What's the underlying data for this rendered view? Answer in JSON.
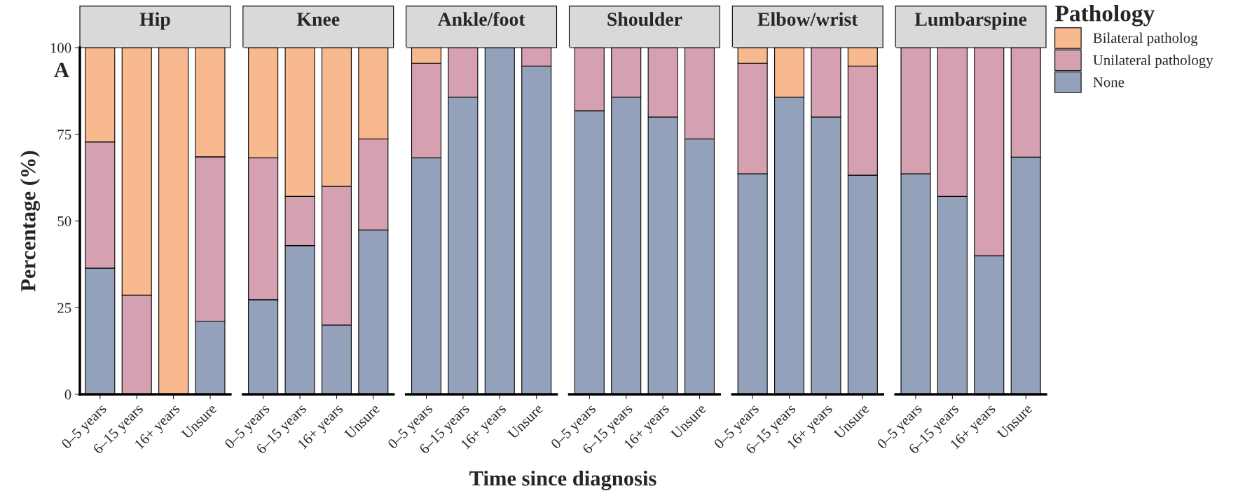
{
  "chart_data": [
    {
      "type": "bar",
      "title": "Hip",
      "ylabel": "Percentage (%)",
      "annotations": [
        "A"
      ],
      "categories": [
        "0–5 years",
        "6–15 years",
        "16+ years",
        "Unsure"
      ],
      "stacked": true,
      "ylim": [
        0,
        100
      ],
      "yticks": [
        0,
        25,
        50,
        75,
        100
      ],
      "grid": false,
      "legend": false,
      "series": [
        {
          "color": "#93a1bb",
          "values": [
            36.4,
            0,
            0,
            21.1
          ]
        },
        {
          "color": "#d5a1b0",
          "values": [
            36.4,
            28.6,
            0,
            47.4
          ]
        },
        {
          "color": "#f8b98f",
          "values": [
            27.2,
            71.4,
            100,
            31.5
          ]
        }
      ]
    },
    {
      "type": "bar",
      "title": "Knee",
      "categories": [
        "0–5 years",
        "6–15 years",
        "16+ years",
        "Unsure"
      ],
      "stacked": true,
      "ylim": [
        0,
        100
      ],
      "yticks": [
        0,
        25,
        50,
        75,
        100
      ],
      "tick_labels": "x",
      "grid": false,
      "legend": false,
      "series": [
        {
          "color": "#93a1bb",
          "values": [
            27.3,
            42.9,
            20,
            47.4
          ]
        },
        {
          "color": "#d5a1b0",
          "values": [
            40.9,
            14.2,
            40,
            26.3
          ]
        },
        {
          "color": "#f8b98f",
          "values": [
            31.8,
            42.9,
            40,
            26.3
          ]
        }
      ]
    },
    {
      "type": "bar",
      "title": "Ankle/foot",
      "xlabel": "Time since diagnosis",
      "categories": [
        "0–5 years",
        "6–15 years",
        "16+ years",
        "Unsure"
      ],
      "stacked": true,
      "ylim": [
        0,
        100
      ],
      "yticks": [
        0,
        25,
        50,
        75,
        100
      ],
      "tick_labels": "x",
      "grid": false,
      "legend": false,
      "series": [
        {
          "color": "#93a1bb",
          "values": [
            68.2,
            85.7,
            100,
            94.7
          ]
        },
        {
          "color": "#d5a1b0",
          "values": [
            27.3,
            14.3,
            0,
            5.3
          ]
        },
        {
          "color": "#f8b98f",
          "values": [
            4.5,
            0,
            0,
            0
          ]
        }
      ]
    },
    {
      "type": "bar",
      "title": "Shoulder",
      "categories": [
        "0–5 years",
        "6–15 years",
        "16+ years",
        "Unsure"
      ],
      "stacked": true,
      "ylim": [
        0,
        100
      ],
      "yticks": [
        0,
        25,
        50,
        75,
        100
      ],
      "tick_labels": "x",
      "grid": false,
      "legend": false,
      "series": [
        {
          "color": "#93a1bb",
          "values": [
            81.8,
            85.7,
            80,
            73.7
          ]
        },
        {
          "color": "#d5a1b0",
          "values": [
            18.2,
            14.3,
            20,
            26.3
          ]
        },
        {
          "color": "#f8b98f",
          "values": [
            0,
            0,
            0,
            0
          ]
        }
      ]
    },
    {
      "type": "bar",
      "title": "Elbow/wrist",
      "categories": [
        "0–5 years",
        "6–15 years",
        "16+ years",
        "Unsure"
      ],
      "stacked": true,
      "ylim": [
        0,
        100
      ],
      "yticks": [
        0,
        25,
        50,
        75,
        100
      ],
      "tick_labels": "x",
      "grid": false,
      "legend": false,
      "series": [
        {
          "color": "#93a1bb",
          "values": [
            63.6,
            85.7,
            80,
            63.2
          ]
        },
        {
          "color": "#d5a1b0",
          "values": [
            31.9,
            0,
            20,
            31.5
          ]
        },
        {
          "color": "#f8b98f",
          "values": [
            4.5,
            14.3,
            0,
            5.3
          ]
        }
      ]
    },
    {
      "type": "bar",
      "title": "Lumbarspine",
      "legend_title": "Pathology",
      "categories": [
        "0–5 years",
        "6–15 years",
        "16+ years",
        "Unsure"
      ],
      "stacked": true,
      "ylim": [
        0,
        100
      ],
      "yticks": [
        0,
        25,
        50,
        75,
        100
      ],
      "tick_labels": "x",
      "grid": false,
      "legend": "right",
      "series": [
        {
          "name": "None",
          "color": "#93a1bb",
          "values": [
            63.6,
            57.1,
            40,
            68.4
          ]
        },
        {
          "name": "Unilateral pathology",
          "color": "#d5a1b0",
          "values": [
            36.4,
            42.9,
            60,
            31.6
          ]
        },
        {
          "name": "Bilateral patholog",
          "color": "#f8b98f",
          "values": [
            0,
            0,
            0,
            0
          ]
        }
      ]
    }
  ]
}
